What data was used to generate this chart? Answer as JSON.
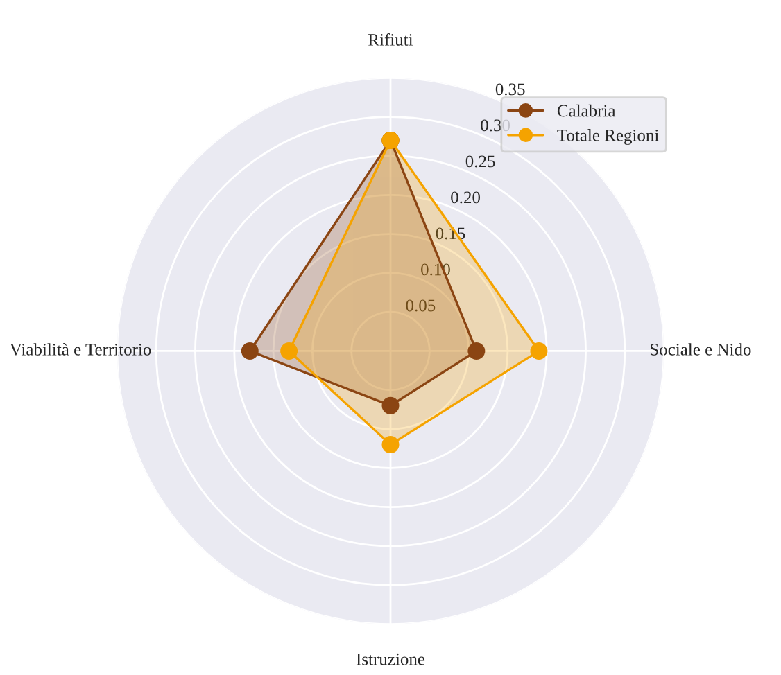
{
  "chart_data": {
    "type": "radar",
    "categories": [
      "Rifiuti",
      "Sociale e Nido",
      "Istruzione",
      "Viabilità e Territorio"
    ],
    "series": [
      {
        "name": "Calabria",
        "color": "#8b4513",
        "values": [
          0.27,
          0.11,
          0.07,
          0.18
        ]
      },
      {
        "name": "Totale Regioni",
        "color": "#f5a300",
        "values": [
          0.27,
          0.19,
          0.12,
          0.13
        ]
      }
    ],
    "ylim": [
      0,
      0.35
    ],
    "yticks": [
      0.05,
      {
        "value": 0.1,
        "label": "0.10"
      },
      0.15,
      {
        "value": 0.2,
        "label": "0.20"
      },
      0.25,
      {
        "value": 0.3,
        "label": "0.30"
      },
      0.35
    ],
    "marker": "circle",
    "legend": "top right",
    "grid": true
  }
}
